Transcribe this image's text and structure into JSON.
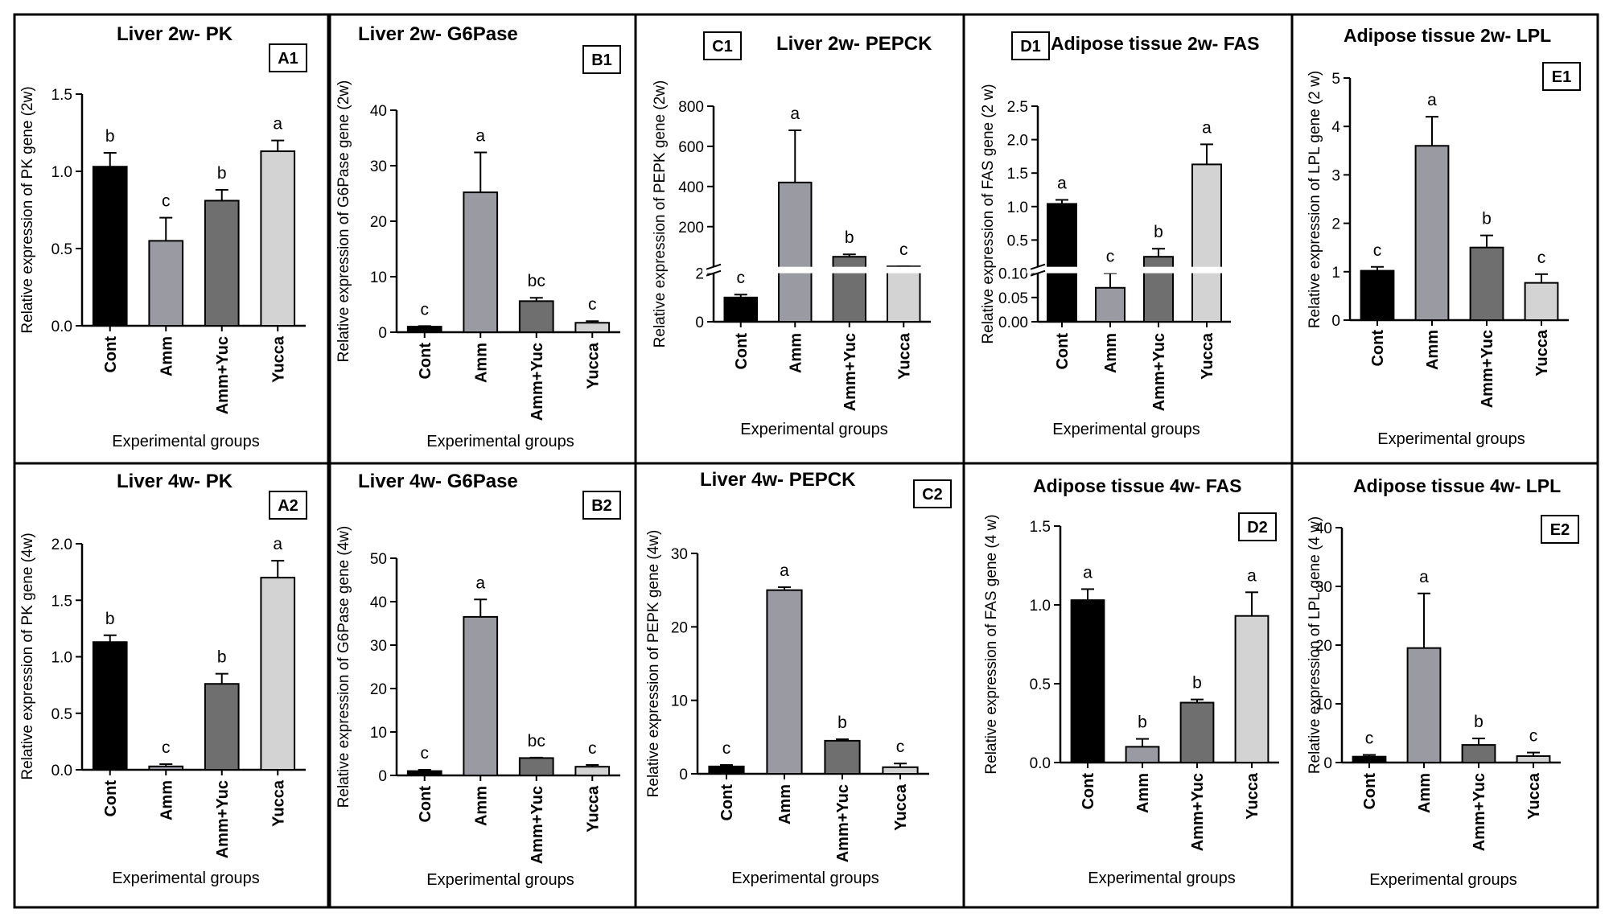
{
  "figure": {
    "x_axis_label": "Experimental groups",
    "groups": [
      "Cont",
      "Amm",
      "Amm+Yuc",
      "Yucca"
    ],
    "colors": [
      "#000000",
      "#9a9aa2",
      "#6f6f6f",
      "#d3d3d3"
    ]
  },
  "chart_data": [
    {
      "id": "A1",
      "type": "bar",
      "title": "Liver 2w- PK",
      "label": "A1",
      "ylabel": "Relative expression of PK gene (2w)",
      "xlabel": "Experimental groups",
      "categories": [
        "Cont",
        "Amm",
        "Amm+Yuc",
        "Yucca"
      ],
      "values": [
        1.03,
        0.55,
        0.81,
        1.13
      ],
      "errors": [
        0.09,
        0.15,
        0.07,
        0.07
      ],
      "letters": [
        "b",
        "c",
        "b",
        "a"
      ],
      "ylim": [
        0,
        1.5
      ],
      "ticks": [
        "0.0",
        "0.5",
        "1.0",
        "1.5"
      ]
    },
    {
      "id": "B1",
      "type": "bar",
      "title": "Liver 2w- G6Pase",
      "label": "B1",
      "ylabel": "Relative expression of G6Pase gene (2w)",
      "xlabel": "Experimental groups",
      "categories": [
        "Cont",
        "Amm",
        "Amm+Yuc",
        "Yucca"
      ],
      "values": [
        1.0,
        25.2,
        5.6,
        1.7
      ],
      "errors": [
        0.1,
        7.2,
        0.6,
        0.3
      ],
      "letters": [
        "c",
        "a",
        "bc",
        "c"
      ],
      "ylim": [
        0,
        40
      ],
      "ticks": [
        "0",
        "10",
        "20",
        "30",
        "40"
      ]
    },
    {
      "id": "C1",
      "type": "bar",
      "title": "Liver 2w- PEPCK",
      "label": "C1",
      "ylabel": "Relative expression of PEPK gene (2w)",
      "xlabel": "Experimental groups",
      "categories": [
        "Cont",
        "Amm",
        "Amm+Yuc",
        "Yucca"
      ],
      "values": [
        1.0,
        420,
        50,
        2.1
      ],
      "errors": [
        0.12,
        260,
        12,
        0.1
      ],
      "letters": [
        "c",
        "a",
        "b",
        "c"
      ],
      "broken": true,
      "lower_ticks": [
        "0",
        "2"
      ],
      "upper_ticks": [
        "200",
        "400",
        "600",
        "800"
      ],
      "lower_max": 2,
      "upper_min": 0,
      "upper_max": 800
    },
    {
      "id": "D1",
      "type": "bar",
      "title": "Adipose tissue 2w- FAS",
      "label": "D1",
      "ylabel": "Relative expression of FAS gene (2 w)",
      "xlabel": "Experimental groups",
      "categories": [
        "Cont",
        "Amm",
        "Amm+Yuc",
        "Yucca"
      ],
      "values": [
        1.04,
        0.07,
        0.25,
        1.63
      ],
      "errors": [
        0.06,
        0.03,
        0.12,
        0.3
      ],
      "letters": [
        "a",
        "c",
        "b",
        "a"
      ],
      "broken": true,
      "lower_ticks": [
        "0.00",
        "0.05",
        "0.10"
      ],
      "upper_ticks": [
        "0.5",
        "1.0",
        "1.5",
        "2.0",
        "2.5"
      ],
      "lower_max": 0.1,
      "upper_min": 0.1,
      "upper_max": 2.5
    },
    {
      "id": "E1",
      "type": "bar",
      "title": "Adipose tissue 2w- LPL",
      "label": "E1",
      "ylabel": "Relative expression of LPL gene (2 w)",
      "xlabel": "Experimental groups",
      "categories": [
        "Cont",
        "Amm",
        "Amm+Yuc",
        "Yucca"
      ],
      "values": [
        1.02,
        3.6,
        1.5,
        0.77
      ],
      "errors": [
        0.08,
        0.6,
        0.25,
        0.18
      ],
      "letters": [
        "c",
        "a",
        "b",
        "c"
      ],
      "ylim": [
        0,
        5
      ],
      "ticks": [
        "0",
        "1",
        "2",
        "3",
        "4",
        "5"
      ]
    },
    {
      "id": "A2",
      "type": "bar",
      "title": "Liver 4w- PK",
      "label": "A2",
      "ylabel": "Relative expression of PK gene (4w)",
      "xlabel": "Experimental groups",
      "categories": [
        "Cont",
        "Amm",
        "Amm+Yuc",
        "Yucca"
      ],
      "values": [
        1.13,
        0.03,
        0.76,
        1.7
      ],
      "errors": [
        0.06,
        0.02,
        0.09,
        0.15
      ],
      "letters": [
        "b",
        "c",
        "b",
        "a"
      ],
      "ylim": [
        0,
        2.0
      ],
      "ticks": [
        "0.0",
        "0.5",
        "1.0",
        "1.5",
        "2.0"
      ]
    },
    {
      "id": "B2",
      "type": "bar",
      "title": "Liver 4w- G6Pase",
      "label": "B2",
      "ylabel": "Relative expression of G6Pase gene (4w)",
      "xlabel": "Experimental groups",
      "categories": [
        "Cont",
        "Amm",
        "Amm+Yuc",
        "Yucca"
      ],
      "values": [
        1.0,
        36.5,
        4.0,
        2.0
      ],
      "errors": [
        0.3,
        4.0,
        0.1,
        0.4
      ],
      "letters": [
        "c",
        "a",
        "bc",
        "c"
      ],
      "ylim": [
        0,
        50
      ],
      "ticks": [
        "0",
        "10",
        "20",
        "30",
        "40",
        "50"
      ]
    },
    {
      "id": "C2",
      "type": "bar",
      "title": "Liver 4w- PEPCK",
      "label": "C2",
      "ylabel": "Relative expression of PEPK gene (4w)",
      "xlabel": "Experimental groups",
      "categories": [
        "Cont",
        "Amm",
        "Amm+Yuc",
        "Yucca"
      ],
      "values": [
        1.0,
        25.0,
        4.5,
        0.9
      ],
      "errors": [
        0.2,
        0.4,
        0.2,
        0.5
      ],
      "letters": [
        "c",
        "a",
        "b",
        "c"
      ],
      "ylim": [
        0,
        30
      ],
      "ticks": [
        "0",
        "10",
        "20",
        "30"
      ]
    },
    {
      "id": "D2",
      "type": "bar",
      "title": "Adipose tissue 4w- FAS",
      "label": "D2",
      "ylabel": "Relative expression of FAS gene (4 w)",
      "xlabel": "Experimental groups",
      "categories": [
        "Cont",
        "Amm",
        "Amm+Yuc",
        "Yucca"
      ],
      "values": [
        1.03,
        0.1,
        0.38,
        0.93
      ],
      "errors": [
        0.07,
        0.05,
        0.02,
        0.15
      ],
      "letters": [
        "a",
        "b",
        "b",
        "a"
      ],
      "ylim": [
        0,
        1.5
      ],
      "ticks": [
        "0.0",
        "0.5",
        "1.0",
        "1.5"
      ]
    },
    {
      "id": "E2",
      "type": "bar",
      "title": "Adipose tissue 4w- LPL",
      "label": "E2",
      "ylabel": "Relative expression of LPL gene (4 w)",
      "xlabel": "Experimental groups",
      "categories": [
        "Cont",
        "Amm",
        "Amm+Yuc",
        "Yucca"
      ],
      "values": [
        1.0,
        19.5,
        3.0,
        1.1
      ],
      "errors": [
        0.3,
        9.3,
        1.1,
        0.6
      ],
      "letters": [
        "c",
        "a",
        "b",
        "c"
      ],
      "ylim": [
        0,
        40
      ],
      "ticks": [
        "0",
        "10",
        "20",
        "30",
        "40"
      ]
    }
  ]
}
